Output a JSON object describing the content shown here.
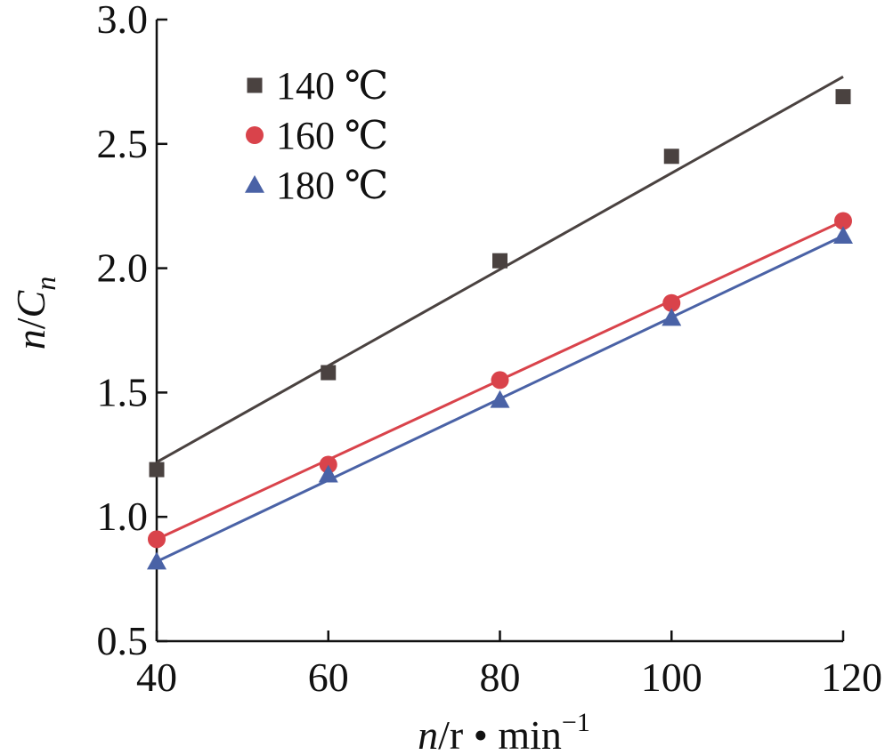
{
  "chart_data": {
    "type": "scatter",
    "x": [
      40,
      60,
      80,
      100,
      120
    ],
    "xlim": [
      40,
      120
    ],
    "ylim": [
      0.5,
      3.0
    ],
    "xticks": [
      "40",
      "60",
      "80",
      "100",
      "120"
    ],
    "yticks": [
      "0.5",
      "1.0",
      "1.5",
      "2.0",
      "2.5",
      "3.0"
    ],
    "xlabel": {
      "var": "n",
      "rest": "/r • min",
      "sup": "−1"
    },
    "ylabel": {
      "var": "n",
      "slash": "/",
      "c": "C",
      "sub": "n"
    },
    "legend_position": "top-left",
    "series": [
      {
        "name": "140 ℃",
        "marker": "square",
        "color": "#4a4240",
        "values": [
          1.19,
          1.58,
          2.03,
          2.45,
          2.69
        ],
        "fit": [
          1.22,
          2.77
        ]
      },
      {
        "name": "160 ℃",
        "marker": "circle",
        "color": "#d9434b",
        "values": [
          0.91,
          1.21,
          1.55,
          1.86,
          2.19
        ],
        "fit": [
          0.91,
          2.19
        ]
      },
      {
        "name": "180 ℃",
        "marker": "triangle",
        "color": "#4a62a6",
        "values": [
          0.82,
          1.17,
          1.47,
          1.8,
          2.13
        ],
        "fit": [
          0.82,
          2.13
        ]
      }
    ]
  }
}
